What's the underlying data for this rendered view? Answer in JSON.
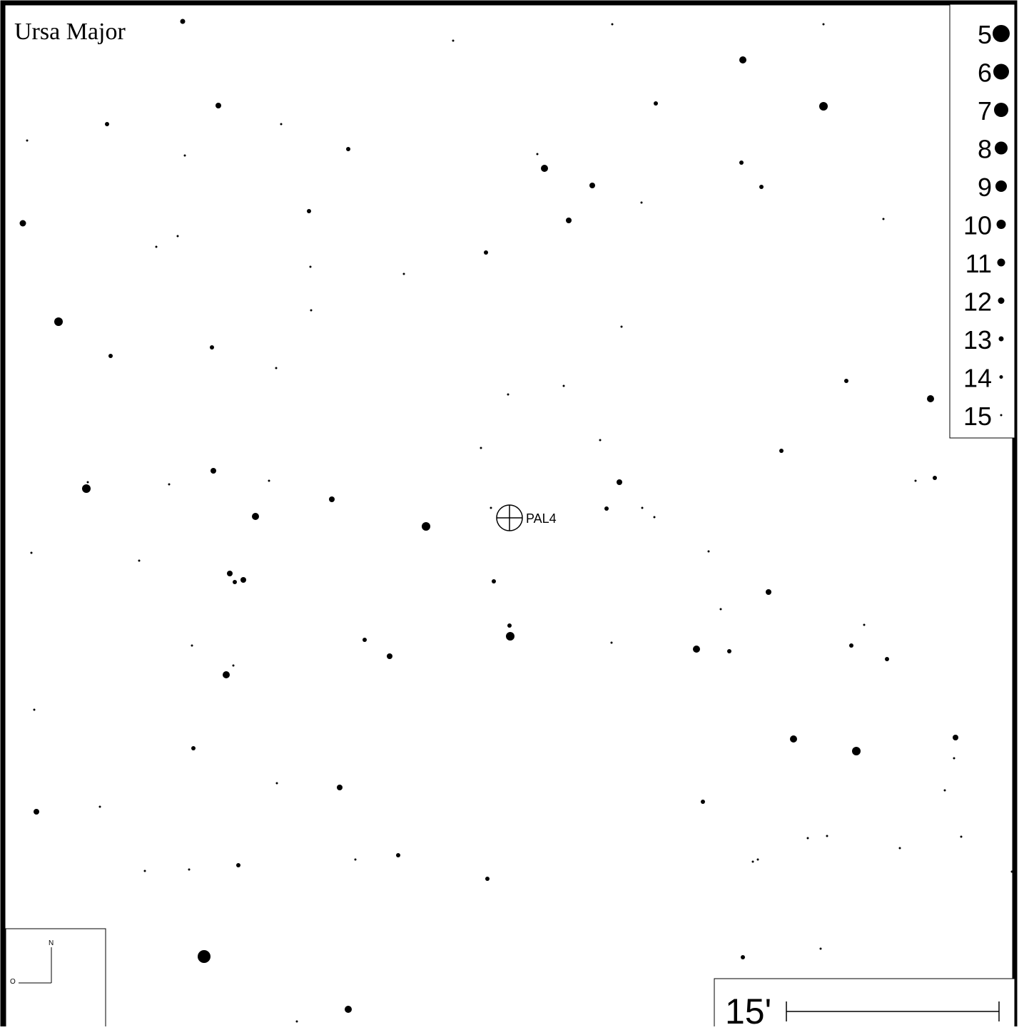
{
  "constellation": "Ursa Major",
  "target": {
    "label": "PAL4"
  },
  "magnitude_legend": [
    {
      "mag": "5",
      "r": 12
    },
    {
      "mag": "6",
      "r": 11
    },
    {
      "mag": "7",
      "r": 10
    },
    {
      "mag": "8",
      "r": 9
    },
    {
      "mag": "9",
      "r": 8
    },
    {
      "mag": "10",
      "r": 6.5
    },
    {
      "mag": "11",
      "r": 5.5
    },
    {
      "mag": "12",
      "r": 4.5
    },
    {
      "mag": "13",
      "r": 3.5
    },
    {
      "mag": "14",
      "r": 2.5
    },
    {
      "mag": "15",
      "r": 1.5
    }
  ],
  "compass": {
    "north": "N",
    "east": "O"
  },
  "scale_bar": {
    "label": "15'"
  },
  "stars": [
    [
      256,
      30,
      3.5
    ],
    [
      1041,
      84,
      5
    ],
    [
      306,
      148,
      4
    ],
    [
      1154,
      149,
      6
    ],
    [
      919,
      145,
      3
    ],
    [
      150,
      174,
      3
    ],
    [
      394,
      174,
      1.5
    ],
    [
      38,
      197,
      1.5
    ],
    [
      488,
      209,
      3
    ],
    [
      259,
      218,
      1.5
    ],
    [
      753,
      216,
      1.5
    ],
    [
      763,
      236,
      5
    ],
    [
      1039,
      228,
      3
    ],
    [
      830,
      260,
      4
    ],
    [
      1067,
      262,
      3
    ],
    [
      32,
      313,
      4.5
    ],
    [
      433,
      296,
      3
    ],
    [
      797,
      309,
      4
    ],
    [
      899,
      284,
      1.5
    ],
    [
      1238,
      307,
      1.5
    ],
    [
      249,
      331,
      1.5
    ],
    [
      219,
      346,
      1.5
    ],
    [
      681,
      354,
      3
    ],
    [
      435,
      374,
      1.5
    ],
    [
      566,
      384,
      1.5
    ],
    [
      82,
      451,
      6
    ],
    [
      436,
      435,
      1.5
    ],
    [
      871,
      458,
      1.5
    ],
    [
      155,
      499,
      3
    ],
    [
      297,
      487,
      3
    ],
    [
      387,
      516,
      1.5
    ],
    [
      712,
      553,
      1.5
    ],
    [
      790,
      541,
      1.5
    ],
    [
      1186,
      534,
      3
    ],
    [
      1304,
      559,
      5
    ],
    [
      674,
      628,
      1.5
    ],
    [
      841,
      617,
      1.5
    ],
    [
      1095,
      632,
      3
    ],
    [
      123,
      676,
      1.5
    ],
    [
      121,
      685,
      6
    ],
    [
      237,
      679,
      1.5
    ],
    [
      299,
      660,
      4
    ],
    [
      377,
      674,
      1.5
    ],
    [
      868,
      676,
      4
    ],
    [
      1310,
      670,
      3
    ],
    [
      1283,
      674,
      1.5
    ],
    [
      465,
      700,
      4
    ],
    [
      358,
      724,
      5
    ],
    [
      597,
      738,
      6
    ],
    [
      850,
      713,
      3
    ],
    [
      900,
      712,
      1.5
    ],
    [
      917,
      725,
      1.5
    ],
    [
      688,
      712,
      1.5
    ],
    [
      44,
      775,
      1.5
    ],
    [
      195,
      786,
      1.5
    ],
    [
      322,
      804,
      4
    ],
    [
      341,
      813,
      4
    ],
    [
      329,
      816,
      3
    ],
    [
      692,
      815,
      3
    ],
    [
      993,
      773,
      1.5
    ],
    [
      1077,
      830,
      4
    ],
    [
      1010,
      854,
      1.5
    ],
    [
      714,
      877,
      3
    ],
    [
      715,
      892,
      6
    ],
    [
      1211,
      876,
      1.5
    ],
    [
      269,
      905,
      1.5
    ],
    [
      511,
      897,
      3
    ],
    [
      546,
      920,
      4
    ],
    [
      857,
      901,
      1.5
    ],
    [
      976,
      910,
      5
    ],
    [
      1022,
      913,
      3
    ],
    [
      1193,
      905,
      3
    ],
    [
      1243,
      924,
      3
    ],
    [
      327,
      933,
      1.5
    ],
    [
      317,
      946,
      5
    ],
    [
      48,
      995,
      1.5
    ],
    [
      271,
      1049,
      3
    ],
    [
      1112,
      1036,
      5
    ],
    [
      1200,
      1053,
      6
    ],
    [
      1339,
      1034,
      4
    ],
    [
      1337,
      1063,
      1.5
    ],
    [
      388,
      1098,
      1.5
    ],
    [
      476,
      1104,
      4
    ],
    [
      1324,
      1108,
      1.5
    ],
    [
      51,
      1138,
      4
    ],
    [
      140,
      1131,
      1.5
    ],
    [
      985,
      1124,
      3
    ],
    [
      1132,
      1175,
      1.5
    ],
    [
      1159,
      1172,
      1.5
    ],
    [
      1347,
      1173,
      1.5
    ],
    [
      1261,
      1189,
      1.5
    ],
    [
      203,
      1221,
      1.5
    ],
    [
      265,
      1219,
      1.5
    ],
    [
      334,
      1213,
      3
    ],
    [
      498,
      1205,
      1.5
    ],
    [
      558,
      1199,
      3
    ],
    [
      683,
      1232,
      3
    ],
    [
      1055,
      1208,
      1.5
    ],
    [
      1062,
      1205,
      1.5
    ],
    [
      1418,
      1222,
      1.5
    ],
    [
      286,
      1341,
      9
    ],
    [
      1041,
      1342,
      3
    ],
    [
      1150,
      1330,
      1.5
    ],
    [
      488,
      1415,
      5
    ],
    [
      416,
      1432,
      1.5
    ],
    [
      858,
      34,
      1.5
    ],
    [
      1154,
      34,
      1.5
    ],
    [
      635,
      57,
      1.5
    ]
  ]
}
